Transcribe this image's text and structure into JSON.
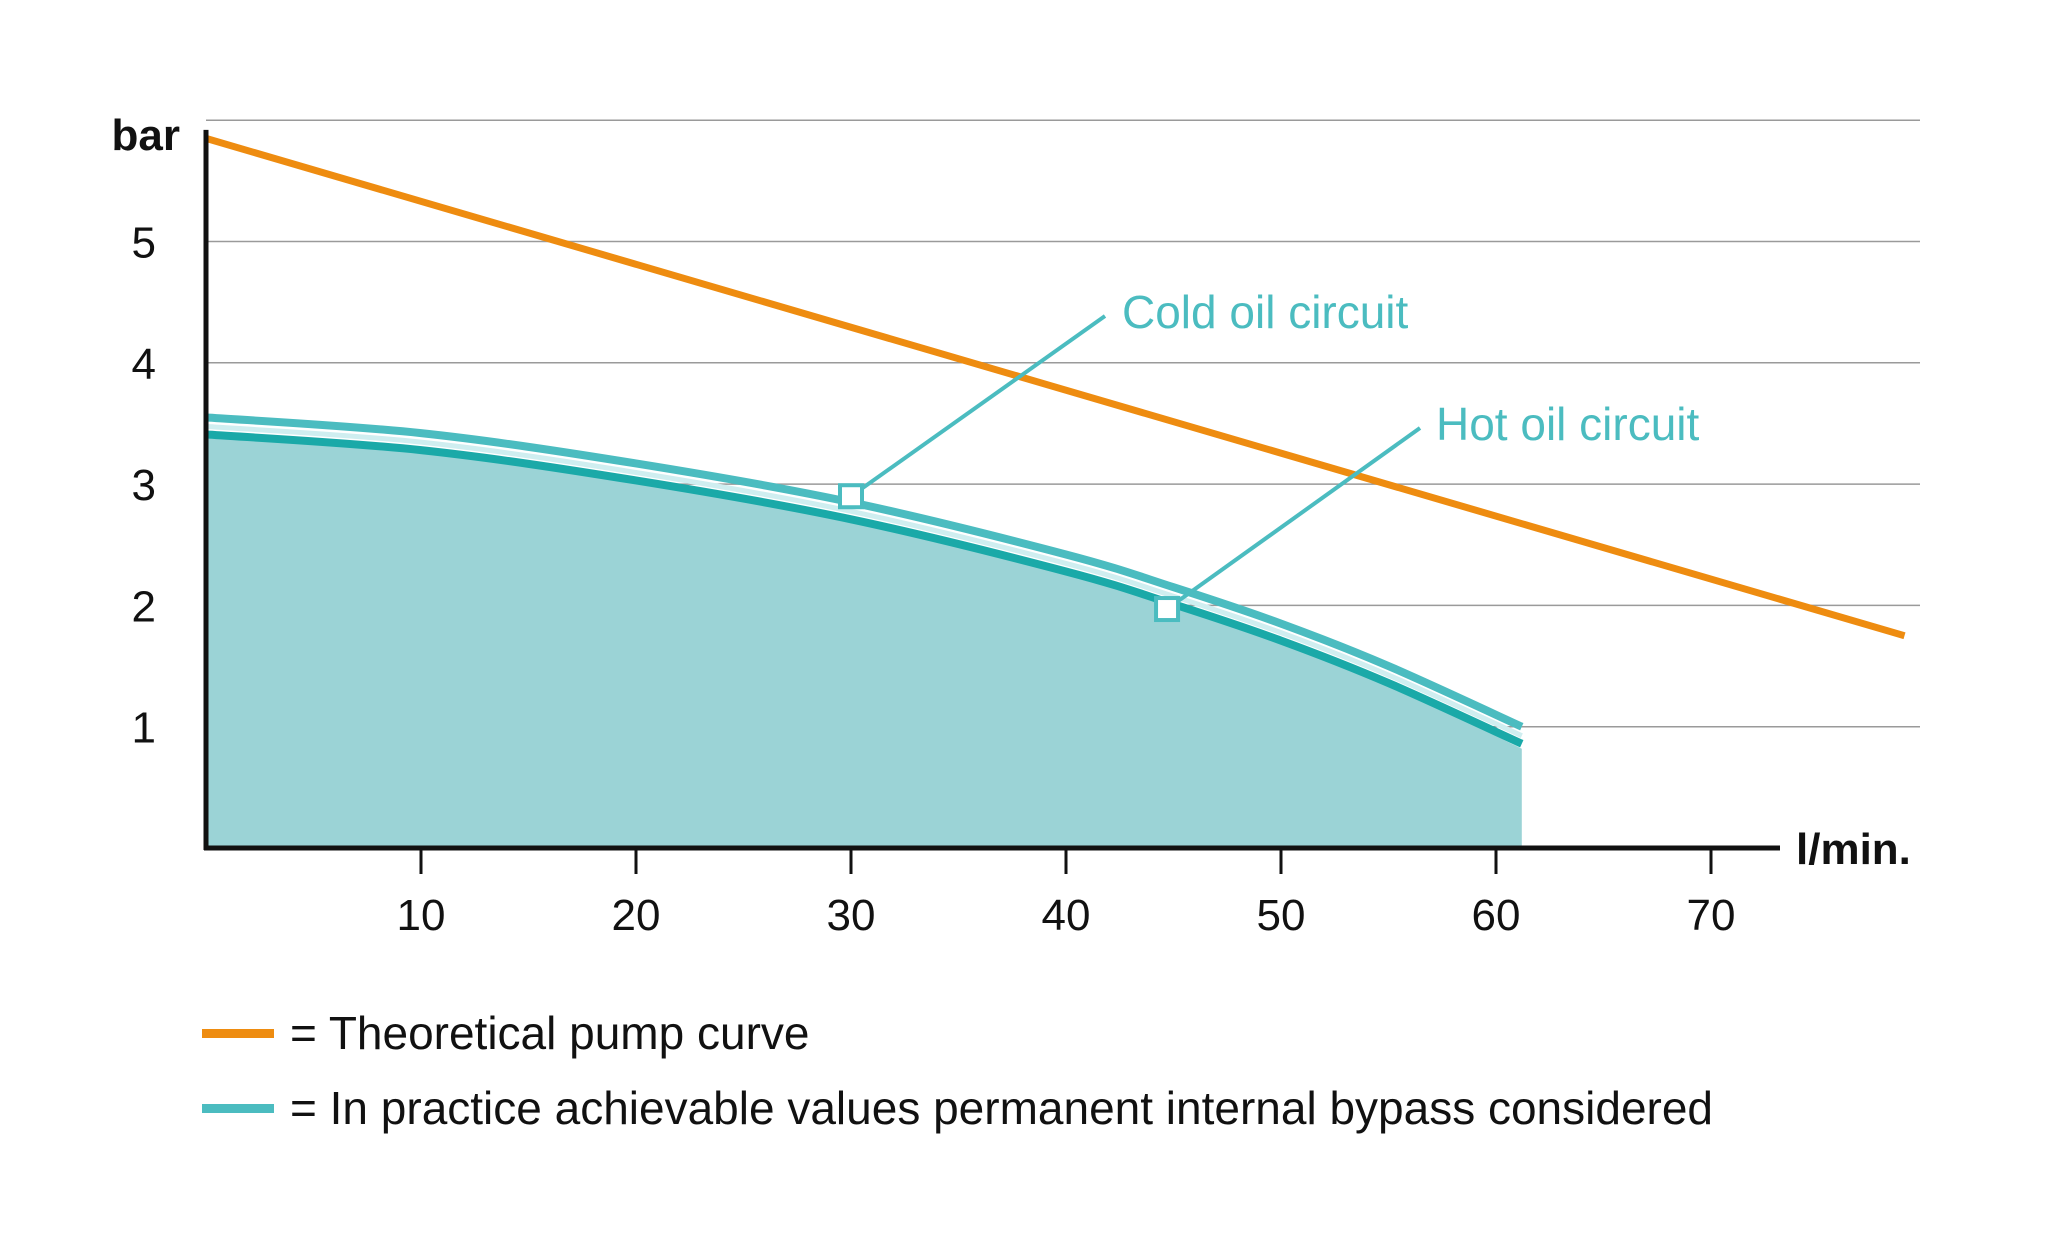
{
  "chart_data": {
    "type": "line",
    "x_axis": {
      "unit": "l/min.",
      "range": [
        0,
        80
      ],
      "ticks": [
        10,
        20,
        30,
        40,
        50,
        60,
        70
      ]
    },
    "y_axis": {
      "unit": "bar",
      "range": [
        0,
        6
      ],
      "ticks": [
        1,
        2,
        3,
        4,
        5
      ],
      "grid": true
    },
    "series": [
      {
        "name": "Theoretical pump curve",
        "color": "#ee8c10",
        "points": [
          [
            0,
            5.85
          ],
          [
            79,
            1.75
          ]
        ]
      },
      {
        "name": "In practice achievable values permanent internal bypass considered",
        "color": "#4bbcc0",
        "fill": "#9bd3d6",
        "points": [
          [
            0,
            3.55
          ],
          [
            10,
            3.42
          ],
          [
            20,
            3.17
          ],
          [
            30,
            2.85
          ],
          [
            40,
            2.42
          ],
          [
            45,
            2.15
          ],
          [
            50,
            1.85
          ],
          [
            55,
            1.5
          ],
          [
            61.2,
            1.0
          ]
        ]
      }
    ],
    "annotations": [
      {
        "label": "Cold oil circuit",
        "x": 30,
        "y": 2.9,
        "color": "#4bbcc0"
      },
      {
        "label": "Hot oil circuit",
        "x": 44.7,
        "y": 1.97,
        "color": "#4bbcc0"
      }
    ],
    "legend": {
      "position": "bottom-left",
      "entries": [
        {
          "text": "= Theoretical pump curve",
          "color": "#ee8c10"
        },
        {
          "text": "= In practice achievable values permanent internal bypass considered",
          "color": "#4bbcc0"
        }
      ]
    }
  }
}
